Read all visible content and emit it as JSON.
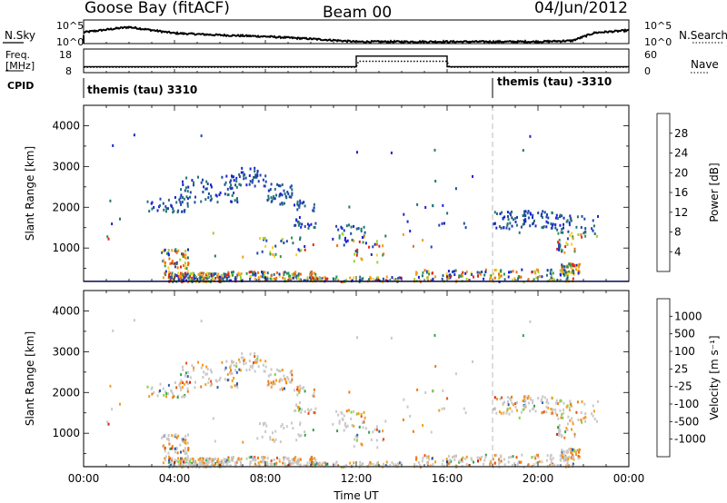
{
  "header": {
    "site": "Goose Bay (fitACF)",
    "beam": "Beam 00",
    "date": "04/Jun/2012"
  },
  "strip": {
    "nsky_label": "N.Sky",
    "nsearch_label": "N.Search",
    "noise_tick_hi": "10^5",
    "noise_tick_lo": "10^0",
    "freq_label_1": "Freq.",
    "freq_label_2": "[MHz]",
    "freq_ticks": [
      "18",
      "8"
    ],
    "nave_ticks": [
      "60",
      "0"
    ],
    "nave_label": "Nave",
    "cpid_label": "CPID",
    "cpid_left": "themis (tau) 3310",
    "cpid_right": "themis (tau) -3310"
  },
  "chart_data": [
    {
      "type": "line",
      "name": "noise",
      "x": [
        "00:00",
        "02:00",
        "04:00",
        "06:00",
        "08:00",
        "10:00",
        "12:00",
        "14:00",
        "16:00",
        "18:00",
        "20:00",
        "21:30",
        "22:30",
        "24:00"
      ],
      "series": [
        {
          "name": "N.Sky",
          "values": [
            2.4,
            3.5,
            2.2,
            1.8,
            1.5,
            1.0,
            0.4,
            0.4,
            0.4,
            0.4,
            0.4,
            0.6,
            2.3,
            2.8
          ]
        }
      ],
      "ylim": [
        0,
        5
      ],
      "tick_labels": [
        "10^5",
        "10^0"
      ]
    },
    {
      "type": "line",
      "name": "frequency-and-nave",
      "x": [
        "00:00",
        "12:00",
        "12:00",
        "16:00",
        "16:00",
        "24:00"
      ],
      "series": [
        {
          "name": "Freq.",
          "values": [
            10.5,
            10.5,
            15,
            15,
            10.5,
            10.5
          ]
        }
      ],
      "ylim": [
        8,
        18
      ],
      "nave_ylim": [
        0,
        60
      ]
    },
    {
      "type": "heatmap",
      "name": "power",
      "xlabel": "",
      "ylabel": "Slant Range [km]",
      "xlim": [
        0,
        24
      ],
      "ylim": [
        180,
        4500
      ],
      "yticks": [
        1000,
        2000,
        3000,
        4000
      ],
      "colorbar": {
        "label": "Power [dB]",
        "ticks": [
          "4",
          "8",
          "12",
          "16",
          "20",
          "24",
          "28"
        ],
        "colors": [
          "#1a24d0",
          "#2048a8",
          "#237373",
          "#2c9852",
          "#9ad230",
          "#f7d11d",
          "#f39c14",
          "#ef6c14",
          "#e32217"
        ]
      }
    },
    {
      "type": "heatmap",
      "name": "velocity",
      "xlabel": "Time UT",
      "ylabel": "Slant Range [km]",
      "xlim": [
        0,
        24
      ],
      "ylim": [
        180,
        4500
      ],
      "yticks": [
        1000,
        2000,
        3000,
        4000
      ],
      "xticks": [
        "00:00",
        "04:00",
        "08:00",
        "12:00",
        "16:00",
        "20:00",
        "00:00"
      ],
      "colorbar": {
        "label": "Velocity [m s⁻¹]",
        "ticks": [
          "1000",
          "500",
          "100",
          "25",
          "-25",
          "-100",
          "-500",
          "-1000"
        ],
        "colors": [
          "#1f3fc3",
          "#2a5fae",
          "#2f7f75",
          "#30a34a",
          "#83d437",
          "#c9c9c9",
          "#f59c1c",
          "#ef7d18",
          "#ea5117",
          "#e31d18"
        ]
      }
    }
  ]
}
